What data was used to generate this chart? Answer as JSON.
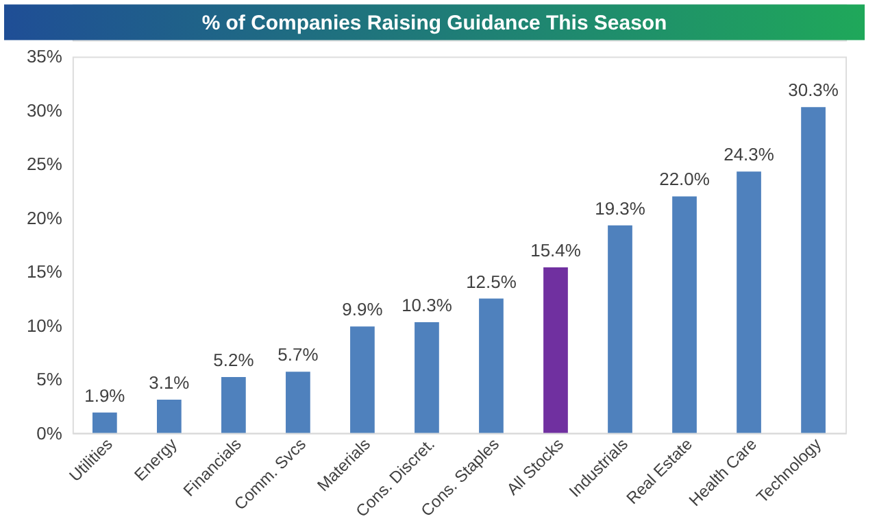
{
  "chart_data": {
    "type": "bar",
    "title": "% of Companies Raising Guidance This Season",
    "categories": [
      "Utilities",
      "Energy",
      "Financials",
      "Comm. Svcs",
      "Materials",
      "Cons. Discret.",
      "Cons. Staples",
      "All Stocks",
      "Industrials",
      "Real Estate",
      "Health Care",
      "Technology"
    ],
    "values": [
      1.9,
      3.1,
      5.2,
      5.7,
      9.9,
      10.3,
      12.5,
      15.4,
      19.3,
      22.0,
      24.3,
      30.3
    ],
    "colors": [
      "#4f81bd",
      "#4f81bd",
      "#4f81bd",
      "#4f81bd",
      "#4f81bd",
      "#4f81bd",
      "#4f81bd",
      "#7030a0",
      "#4f81bd",
      "#4f81bd",
      "#4f81bd",
      "#4f81bd"
    ],
    "value_labels": [
      "1.9%",
      "3.1%",
      "5.2%",
      "5.7%",
      "9.9%",
      "10.3%",
      "12.5%",
      "15.4%",
      "19.3%",
      "22.0%",
      "24.3%",
      "30.3%"
    ],
    "ylim": [
      0,
      35
    ],
    "yticks": [
      {
        "value": 0,
        "label": "0%"
      },
      {
        "value": 5,
        "label": "5%"
      },
      {
        "value": 10,
        "label": "10%"
      },
      {
        "value": 15,
        "label": "15%"
      },
      {
        "value": 20,
        "label": "20%"
      },
      {
        "value": 25,
        "label": "25%"
      },
      {
        "value": 30,
        "label": "30%"
      },
      {
        "value": 35,
        "label": "35%"
      }
    ],
    "grid": false
  }
}
